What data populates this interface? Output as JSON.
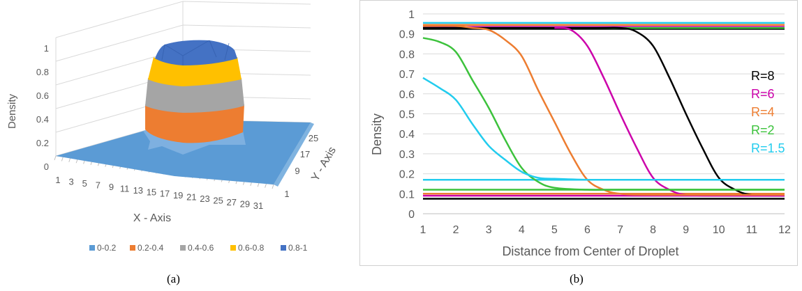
{
  "panels": {
    "a_label": "(a)",
    "b_label": "(b)"
  },
  "chart_data": [
    {
      "type": "surface",
      "title": "",
      "zlabel": "Density",
      "xlabel": "X - Axis",
      "ylabel": "Y - Axis",
      "z_ticks": [
        "0",
        "0.2",
        "0.4",
        "0.6",
        "0.8",
        "1"
      ],
      "x_ticks": [
        "1",
        "3",
        "5",
        "7",
        "9",
        "11",
        "13",
        "15",
        "17",
        "19",
        "21",
        "23",
        "25",
        "27",
        "29",
        "31"
      ],
      "y_ticks": [
        "1",
        "9",
        "17",
        "25"
      ],
      "legend_position": "bottom",
      "legend": [
        {
          "label": "0-0.2",
          "color": "#5b9bd5"
        },
        {
          "label": "0.2-0.4",
          "color": "#ed7d31"
        },
        {
          "label": "0.4-0.6",
          "color": "#a5a5a5"
        },
        {
          "label": "0.6-0.8",
          "color": "#ffc000"
        },
        {
          "label": "0.8-1",
          "color": "#4472c4"
        }
      ]
    },
    {
      "type": "line",
      "title": "",
      "xlabel": "Distance from Center of Droplet",
      "ylabel": "Density",
      "xlim": [
        1,
        12
      ],
      "ylim": [
        0,
        1
      ],
      "x_ticks": [
        "1",
        "2",
        "3",
        "4",
        "5",
        "6",
        "7",
        "8",
        "9",
        "10",
        "11",
        "12"
      ],
      "y_ticks": [
        "0",
        "0.1",
        "0.2",
        "0.3",
        "0.4",
        "0.5",
        "0.6",
        "0.7",
        "0.8",
        "0.9",
        "1"
      ],
      "legend_position": "right",
      "series": [
        {
          "name": "R=8",
          "color": "#000000",
          "x": [
            1,
            6,
            7,
            7.5,
            8,
            8.5,
            9,
            9.5,
            10,
            10.5,
            11,
            12
          ],
          "y": [
            0.93,
            0.93,
            0.93,
            0.91,
            0.84,
            0.68,
            0.5,
            0.33,
            0.18,
            0.12,
            0.095,
            0.09
          ],
          "high": 0.925,
          "low": 0.075
        },
        {
          "name": "R=6",
          "color": "#cc00aa",
          "x": [
            5,
            5.5,
            6,
            6.5,
            7,
            7.5,
            8,
            8.5,
            9,
            10,
            12
          ],
          "y": [
            0.93,
            0.92,
            0.84,
            0.68,
            0.5,
            0.33,
            0.18,
            0.12,
            0.095,
            0.09,
            0.09
          ],
          "high": 0.935,
          "low": 0.09
        },
        {
          "name": "R=4",
          "color": "#ed7d31",
          "x": [
            1,
            2,
            2.5,
            3,
            3.5,
            4,
            4.5,
            5,
            5.5,
            6,
            6.5,
            7,
            8,
            12
          ],
          "y": [
            0.94,
            0.94,
            0.93,
            0.92,
            0.87,
            0.79,
            0.62,
            0.46,
            0.3,
            0.17,
            0.12,
            0.1,
            0.095,
            0.095
          ],
          "high": 0.945,
          "low": 0.1
        },
        {
          "name": "R=2",
          "color": "#3cc23c",
          "x": [
            1,
            1.5,
            2,
            2.5,
            3,
            3.5,
            4,
            4.5,
            5,
            6,
            7,
            12
          ],
          "y": [
            0.88,
            0.86,
            0.81,
            0.67,
            0.53,
            0.37,
            0.23,
            0.16,
            0.13,
            0.12,
            0.12,
            0.12
          ],
          "high": 0.93,
          "low": 0.12
        },
        {
          "name": "R=1.5",
          "color": "#22ccee",
          "x": [
            1,
            1.5,
            2,
            2.5,
            3,
            3.5,
            4,
            4.5,
            5,
            6,
            7,
            12
          ],
          "y": [
            0.68,
            0.63,
            0.57,
            0.45,
            0.34,
            0.27,
            0.21,
            0.18,
            0.175,
            0.17,
            0.17,
            0.17
          ],
          "high": 0.955,
          "low": 0.17
        }
      ]
    }
  ]
}
